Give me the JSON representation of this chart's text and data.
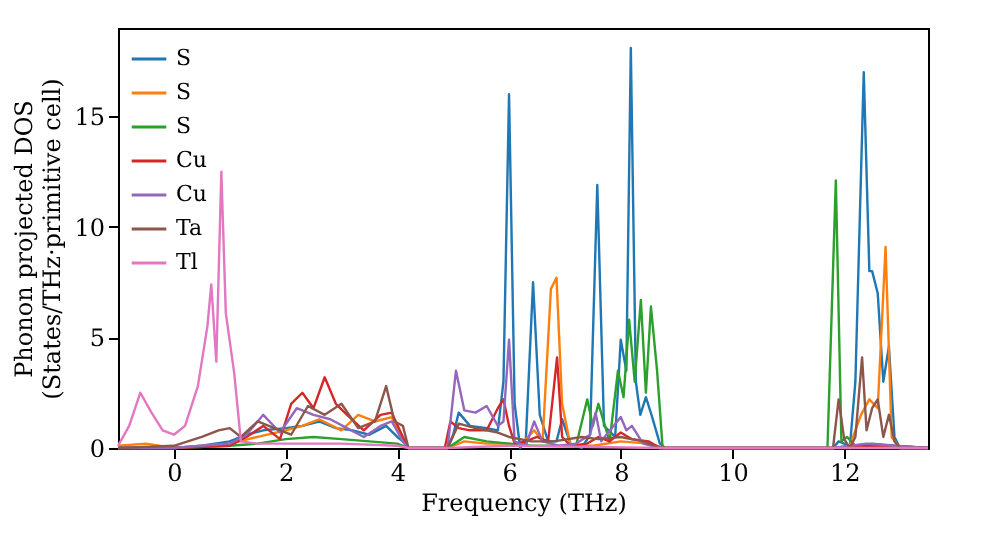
{
  "chart_data": {
    "type": "line",
    "xlabel": "Frequency (THz)",
    "ylabel": "Phonon projected DOS\n(States/THz·primitive cell)",
    "xlim": [
      -1,
      13.5
    ],
    "ylim": [
      0,
      19
    ],
    "xticks": [
      0,
      2,
      4,
      6,
      8,
      10,
      12
    ],
    "yticks": [
      0,
      5,
      10,
      15
    ],
    "grid": false,
    "legend": "top left",
    "line_style": "solid",
    "marker": "none",
    "series": [
      {
        "name": "S",
        "color": "#1f77b4",
        "x": [
          -1,
          0,
          0.5,
          1,
          1.3,
          1.6,
          2,
          2.3,
          2.6,
          2.9,
          3.2,
          3.5,
          3.8,
          4,
          4.1,
          4.2,
          4.9,
          5.0,
          5.1,
          5.3,
          5.6,
          5.8,
          5.9,
          6.0,
          6.1,
          6.2,
          6.3,
          6.43,
          6.55,
          6.7,
          6.85,
          6.95,
          7.1,
          7.3,
          7.45,
          7.58,
          7.7,
          7.9,
          8.0,
          8.1,
          8.18,
          8.27,
          8.35,
          8.45,
          8.55,
          8.7,
          8.8,
          11.8,
          11.9,
          12.0,
          12.1,
          12.2,
          12.35,
          12.45,
          12.5,
          12.6,
          12.7,
          12.8,
          12.9,
          13.0,
          13.5
        ],
        "values": [
          0,
          0,
          0.1,
          0.3,
          0.6,
          0.8,
          0.9,
          1.0,
          1.2,
          0.9,
          0.8,
          0.6,
          1.0,
          0.5,
          0.3,
          0,
          0,
          0.6,
          1.6,
          1.0,
          0.9,
          0.8,
          3.0,
          16.0,
          2.0,
          0,
          0.3,
          7.5,
          1.5,
          0.3,
          0.3,
          1.3,
          0.2,
          0,
          0.6,
          11.9,
          1.0,
          0.5,
          4.9,
          3.5,
          18.1,
          3.0,
          1.5,
          2.3,
          1.5,
          0.2,
          0,
          0,
          0.3,
          0.2,
          0,
          3.0,
          17.0,
          8.0,
          8.0,
          7.0,
          3.0,
          4.6,
          0.5,
          0,
          0
        ]
      },
      {
        "name": "S",
        "color": "#ff7f0e",
        "x": [
          -1,
          -0.5,
          0,
          0.5,
          1,
          1.5,
          2,
          2.3,
          2.6,
          3,
          3.3,
          3.6,
          3.9,
          4.1,
          4.2,
          4.9,
          5.2,
          5.6,
          6.0,
          6.2,
          6.45,
          6.6,
          6.75,
          6.85,
          6.95,
          7.1,
          7.5,
          8,
          8.5,
          8.8,
          11.8,
          12.1,
          12.3,
          12.45,
          12.6,
          12.74,
          12.85,
          13,
          13.5
        ],
        "values": [
          0.1,
          0.2,
          0,
          0.1,
          0.2,
          0.5,
          0.8,
          1.0,
          1.3,
          0.8,
          1.5,
          1.2,
          1.4,
          0.3,
          0,
          0,
          0.3,
          0.2,
          0.2,
          0.1,
          0.8,
          0.3,
          7.2,
          7.7,
          2.0,
          0.1,
          0.1,
          0.3,
          0.2,
          0,
          0,
          0.1,
          1.5,
          2.2,
          1.8,
          9.1,
          0.5,
          0,
          0
        ]
      },
      {
        "name": "S",
        "color": "#2ca02c",
        "x": [
          -1,
          0,
          1,
          1.5,
          2,
          2.5,
          3,
          3.5,
          4,
          4.2,
          4.9,
          5.2,
          5.6,
          6,
          6.4,
          6.8,
          7.2,
          7.4,
          7.5,
          7.6,
          7.8,
          7.95,
          8.05,
          8.15,
          8.25,
          8.36,
          8.45,
          8.54,
          8.65,
          8.75,
          11.7,
          11.85,
          11.95,
          12.05,
          12.2,
          12.5,
          12.9,
          13.5
        ],
        "values": [
          0,
          0,
          0.1,
          0.2,
          0.4,
          0.5,
          0.4,
          0.3,
          0.2,
          0,
          0,
          0.5,
          0.3,
          0.2,
          0.1,
          0.1,
          0.1,
          2.2,
          1.0,
          2.0,
          0.3,
          3.5,
          2.3,
          5.8,
          3.0,
          6.7,
          2.5,
          6.4,
          3.5,
          0,
          0,
          12.1,
          0.3,
          0.5,
          0.1,
          0.2,
          0.1,
          0
        ]
      },
      {
        "name": "Cu",
        "color": "#d62728",
        "x": [
          -1,
          0,
          1,
          1.3,
          1.6,
          1.9,
          2.1,
          2.3,
          2.5,
          2.7,
          2.9,
          3.1,
          3.4,
          3.7,
          3.9,
          4.1,
          4.2,
          4.85,
          4.95,
          5.1,
          5.3,
          5.6,
          5.8,
          5.9,
          6.0,
          6.1,
          6.3,
          6.5,
          6.7,
          6.86,
          6.95,
          7.1,
          7.4,
          7.6,
          7.8,
          8.0,
          8.2,
          8.5,
          8.7,
          11.8,
          12.3,
          12.8,
          13.5
        ],
        "values": [
          0,
          0,
          0.1,
          0.5,
          1.0,
          0.4,
          2.0,
          2.5,
          1.8,
          3.2,
          2.0,
          1.5,
          0.8,
          1.5,
          1.6,
          0.5,
          0,
          0,
          1.2,
          0.9,
          0.8,
          0.8,
          1.8,
          2.2,
          1.0,
          0.2,
          0.3,
          0.5,
          0.3,
          4.1,
          0.5,
          0.1,
          0.2,
          0.5,
          0.3,
          0.7,
          0.4,
          0.3,
          0,
          0,
          0.1,
          0.1,
          0
        ]
      },
      {
        "name": "Cu",
        "color": "#9467bd",
        "x": [
          -1,
          0,
          0.5,
          1,
          1.3,
          1.6,
          1.9,
          2.2,
          2.5,
          2.8,
          3.1,
          3.4,
          3.7,
          3.9,
          4.1,
          4.2,
          4.9,
          5.05,
          5.2,
          5.4,
          5.6,
          5.8,
          5.9,
          6.0,
          6.1,
          6.3,
          6.45,
          6.6,
          6.9,
          7.2,
          7.45,
          7.55,
          7.65,
          8.0,
          8.1,
          8.2,
          8.4,
          8.7,
          11.8,
          12.4,
          12.9,
          13.5
        ],
        "values": [
          0,
          0,
          0.1,
          0.2,
          0.6,
          1.5,
          0.7,
          1.8,
          1.5,
          1.3,
          0.9,
          0.5,
          1.0,
          1.2,
          0.3,
          0,
          0,
          3.5,
          1.7,
          1.6,
          1.9,
          1.0,
          1.2,
          4.9,
          0.3,
          0.1,
          1.2,
          0.3,
          0.1,
          0.2,
          0.6,
          1.6,
          0.3,
          1.4,
          0.8,
          1.0,
          0.2,
          0,
          0,
          0.2,
          0.1,
          0
        ]
      },
      {
        "name": "Ta",
        "color": "#8c564b",
        "x": [
          -1,
          0,
          0.5,
          0.8,
          1.0,
          1.2,
          1.5,
          1.8,
          2.1,
          2.4,
          2.7,
          3.0,
          3.3,
          3.6,
          3.8,
          3.95,
          4.1,
          4.2,
          4.9,
          5.1,
          5.4,
          5.8,
          6.0,
          6.4,
          6.8,
          7.3,
          7.6,
          8.0,
          8.4,
          8.7,
          11.8,
          11.9,
          12.0,
          12.1,
          12.2,
          12.32,
          12.4,
          12.5,
          12.6,
          12.7,
          12.8,
          12.9,
          13.0,
          13.5
        ],
        "values": [
          0,
          0.1,
          0.5,
          0.8,
          0.9,
          0.5,
          1.2,
          0.9,
          0.6,
          1.9,
          1.5,
          2.0,
          0.9,
          1.2,
          2.8,
          1.2,
          1.0,
          0,
          0,
          1.1,
          0.9,
          0.7,
          0.5,
          0.3,
          0.3,
          0.5,
          0.4,
          0.5,
          0.3,
          0,
          0,
          2.2,
          0.4,
          0,
          0.5,
          4.1,
          0.8,
          1.8,
          2.2,
          0.5,
          1.5,
          0.3,
          0,
          0
        ]
      },
      {
        "name": "Tl",
        "color": "#e377c2",
        "x": [
          -1,
          -0.8,
          -0.6,
          -0.4,
          -0.2,
          0,
          0.2,
          0.43,
          0.6,
          0.67,
          0.76,
          0.85,
          0.93,
          1.08,
          1.2,
          1.5,
          2,
          3,
          4,
          4.2,
          4.9,
          6,
          8.7,
          11.8,
          13.5
        ],
        "values": [
          0.1,
          1.0,
          2.5,
          1.6,
          0.8,
          0.6,
          1.0,
          2.8,
          5.5,
          7.4,
          3.9,
          12.5,
          6.1,
          3.4,
          0.3,
          0.2,
          0.2,
          0.2,
          0.1,
          0,
          0,
          0.1,
          0,
          0,
          0
        ]
      }
    ]
  }
}
